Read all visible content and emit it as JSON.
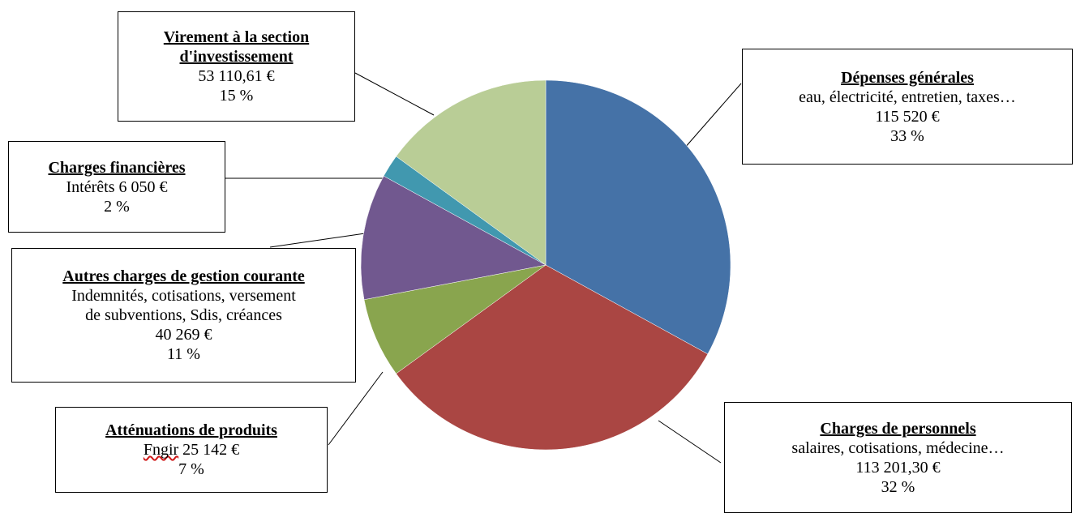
{
  "chart_data": {
    "type": "pie",
    "slices": [
      {
        "title": "Dépenses générales",
        "desc": "eau, électricité, entretien, taxes…",
        "amount": "115 520 €",
        "value": 33,
        "pct": "33 %",
        "color": "#4572a7"
      },
      {
        "title": "Charges de personnels",
        "desc": "salaires, cotisations, médecine…",
        "amount": "113 201,30 €",
        "value": 32,
        "pct": "32 %",
        "color": "#aa4643"
      },
      {
        "title": "Atténuations de produits",
        "desc": "Fngir",
        "amount": "25 142 €",
        "value": 7,
        "pct": "7 %",
        "color": "#89a54e"
      },
      {
        "title": "Autres charges de gestion courante",
        "desc": "Indemnités, cotisations, versement\nde subventions, Sdis, créances",
        "amount": "40 269 €",
        "value": 11,
        "pct": "11 %",
        "color": "#71588f"
      },
      {
        "title": "Charges financières",
        "desc": "Intérêts",
        "amount": "6 050 €",
        "value": 2,
        "pct": "2 %",
        "color": "#4198af"
      },
      {
        "title": "Virement à la section d'investissement",
        "desc": "",
        "amount": "53 110,61 €",
        "value": 15,
        "pct": "15 %",
        "color": "#b9cd96"
      }
    ],
    "start": "12 o'clock",
    "direction": "clockwise",
    "legend": "none"
  }
}
